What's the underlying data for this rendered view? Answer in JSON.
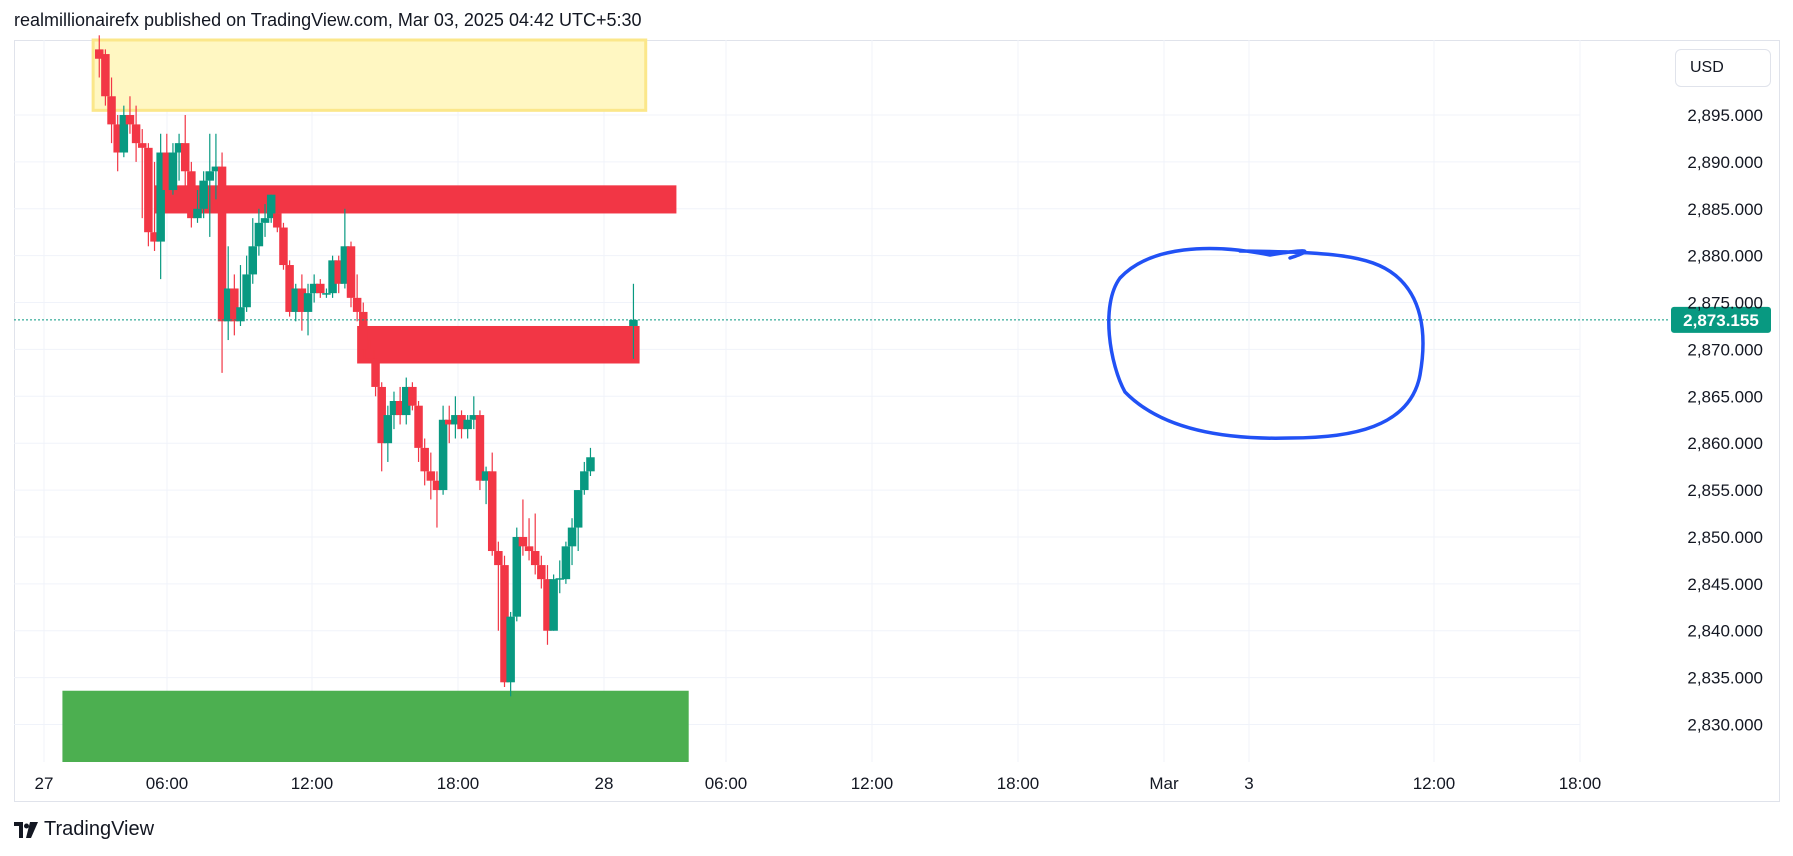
{
  "header": {
    "publisher_line": "realmillionairefx published on TradingView.com, Mar 03, 2025 04:42 UTC+5:30"
  },
  "currency": "USD",
  "footer": {
    "brand": "TradingView"
  },
  "colors": {
    "up": "#089981",
    "down": "#f23645",
    "supply_zone": "#f23645",
    "demand_zone": "#4caf50",
    "highlight_zone": "#fff7c2",
    "highlight_border": "#fbe78a",
    "annotation": "#2151f5",
    "grid": "#f0f3fa",
    "price_line": "#089981"
  },
  "chart_data": {
    "type": "candlestick",
    "symbol_currency": "USD",
    "timeframe": "1 hour",
    "ylim": [
      2826,
      2903
    ],
    "y_ticks": [
      "2,830.000",
      "2,835.000",
      "2,840.000",
      "2,845.000",
      "2,850.000",
      "2,855.000",
      "2,860.000",
      "2,865.000",
      "2,870.000",
      "2,875.000",
      "2,880.000",
      "2,885.000",
      "2,890.000",
      "2,895.000"
    ],
    "x_ticks": [
      "27",
      "06:00",
      "12:00",
      "18:00",
      "28",
      "06:00",
      "12:00",
      "18:00",
      "Mar",
      "3",
      "12:00",
      "18:00"
    ],
    "last_price": "2,873.155",
    "candles": [
      {
        "time": "Feb 27 09:00",
        "o": 2902.0,
        "h": 2903.5,
        "l": 2899.0,
        "c": 2901.0
      },
      {
        "time": "Feb 27 10:00",
        "o": 2901.5,
        "h": 2902.0,
        "l": 2896.0,
        "c": 2897.0
      },
      {
        "time": "Feb 27 11:00",
        "o": 2897.0,
        "h": 2899.0,
        "l": 2892.0,
        "c": 2894.0
      },
      {
        "time": "Feb 27 12:00",
        "o": 2894.0,
        "h": 2895.0,
        "l": 2889.0,
        "c": 2891.0
      },
      {
        "time": "Feb 27 13:00",
        "o": 2891.0,
        "h": 2896.0,
        "l": 2890.5,
        "c": 2895.0
      },
      {
        "time": "Feb 27 14:00",
        "o": 2895.0,
        "h": 2897.0,
        "l": 2893.0,
        "c": 2894.0
      },
      {
        "time": "Feb 27 15:00",
        "o": 2894.0,
        "h": 2896.0,
        "l": 2890.0,
        "c": 2892.0
      },
      {
        "time": "Feb 27 16:00",
        "o": 2892.0,
        "h": 2893.5,
        "l": 2884.0,
        "c": 2891.5
      },
      {
        "time": "Feb 27 17:00",
        "o": 2891.5,
        "h": 2892.0,
        "l": 2881.0,
        "c": 2882.5
      },
      {
        "time": "Feb 27 18:00",
        "o": 2882.5,
        "h": 2890.0,
        "l": 2880.5,
        "c": 2881.5
      },
      {
        "time": "Feb 27 19:00",
        "o": 2881.5,
        "h": 2893.0,
        "l": 2877.5,
        "c": 2891.0
      },
      {
        "time": "Feb 27 20:00",
        "o": 2891.0,
        "h": 2893.0,
        "l": 2885.0,
        "c": 2887.0
      },
      {
        "time": "Feb 27 21:00",
        "o": 2887.0,
        "h": 2892.0,
        "l": 2886.5,
        "c": 2891.0
      },
      {
        "time": "Feb 27 22:00",
        "o": 2891.0,
        "h": 2893.0,
        "l": 2888.0,
        "c": 2892.0
      },
      {
        "time": "Feb 27 23:00",
        "o": 2892.0,
        "h": 2895.0,
        "l": 2887.0,
        "c": 2889.0
      },
      {
        "time": "Feb 28 00:00",
        "o": 2889.0,
        "h": 2890.0,
        "l": 2883.0,
        "c": 2884.0
      },
      {
        "time": "Feb 28 01:00",
        "o": 2884.0,
        "h": 2887.0,
        "l": 2883.5,
        "c": 2885.0
      },
      {
        "time": "Feb 28 02:00",
        "o": 2885.0,
        "h": 2889.0,
        "l": 2884.0,
        "c": 2888.0
      },
      {
        "time": "Feb 28 03:00",
        "o": 2888.0,
        "h": 2893.0,
        "l": 2882.0,
        "c": 2889.0
      },
      {
        "time": "Feb 28 04:00",
        "o": 2889.0,
        "h": 2893.0,
        "l": 2886.0,
        "c": 2889.5
      },
      {
        "time": "Feb 28 05:00",
        "o": 2889.5,
        "h": 2891.0,
        "l": 2867.5,
        "c": 2873.0
      },
      {
        "time": "Feb 28 06:00",
        "o": 2873.0,
        "h": 2881.0,
        "l": 2871.0,
        "c": 2876.5
      },
      {
        "time": "Feb 28 07:00",
        "o": 2876.5,
        "h": 2878.0,
        "l": 2871.5,
        "c": 2873.0
      },
      {
        "time": "Feb 28 08:00",
        "o": 2873.0,
        "h": 2879.0,
        "l": 2872.5,
        "c": 2874.5
      },
      {
        "time": "Feb 28 09:00",
        "o": 2874.5,
        "h": 2880.0,
        "l": 2874.0,
        "c": 2878.0
      },
      {
        "time": "Feb 28 10:00",
        "o": 2878.0,
        "h": 2884.0,
        "l": 2877.0,
        "c": 2881.0
      },
      {
        "time": "Feb 28 11:00",
        "o": 2881.0,
        "h": 2885.0,
        "l": 2880.0,
        "c": 2883.5
      },
      {
        "time": "Feb 28 12:00",
        "o": 2883.5,
        "h": 2885.5,
        "l": 2882.0,
        "c": 2884.0
      },
      {
        "time": "Feb 28 13:00",
        "o": 2884.0,
        "h": 2886.5,
        "l": 2883.5,
        "c": 2886.5
      },
      {
        "time": "Feb 28 14:00",
        "o": 2884.5,
        "h": 2885.5,
        "l": 2882.5,
        "c": 2883.0
      },
      {
        "time": "Feb 28 15:00",
        "o": 2883.0,
        "h": 2883.5,
        "l": 2878.5,
        "c": 2879.0
      },
      {
        "time": "Feb 28 16:00",
        "o": 2879.0,
        "h": 2879.5,
        "l": 2873.5,
        "c": 2874.0
      },
      {
        "time": "Feb 28 17:00",
        "o": 2874.0,
        "h": 2877.0,
        "l": 2873.0,
        "c": 2876.5
      },
      {
        "time": "Feb 28 18:00",
        "o": 2876.5,
        "h": 2878.0,
        "l": 2872.0,
        "c": 2874.0
      },
      {
        "time": "Feb 28 19:00",
        "o": 2874.0,
        "h": 2877.0,
        "l": 2871.5,
        "c": 2876.0
      },
      {
        "time": "Feb 28 20:00",
        "o": 2876.0,
        "h": 2878.0,
        "l": 2875.0,
        "c": 2877.0
      },
      {
        "time": "Feb 28 21:00",
        "o": 2877.0,
        "h": 2877.5,
        "l": 2875.5,
        "c": 2876.0
      },
      {
        "time": "Feb 28 22:00",
        "o": 2876.0,
        "h": 2876.5,
        "l": 2875.5,
        "c": 2876.0
      },
      {
        "time": "Feb 28 23:00",
        "o": 2876.0,
        "h": 2880.0,
        "l": 2875.5,
        "c": 2879.5
      },
      {
        "time": "Mar 01 00:00",
        "o": 2879.5,
        "h": 2880.0,
        "l": 2876.0,
        "c": 2877.0
      },
      {
        "time": "Mar 01 01:00",
        "o": 2877.0,
        "h": 2885.0,
        "l": 2876.5,
        "c": 2881.0
      },
      {
        "time": "Mar 01 02:00",
        "o": 2881.0,
        "h": 2881.5,
        "l": 2874.5,
        "c": 2875.5
      },
      {
        "time": "Mar 01 03:00",
        "o": 2875.5,
        "h": 2878.0,
        "l": 2873.0,
        "c": 2874.0
      },
      {
        "time": "Mar 01 04:00",
        "o": 2874.0,
        "h": 2875.0,
        "l": 2869.0,
        "c": 2870.0
      },
      {
        "time": "Mar 01 05:00",
        "o": 2870.0,
        "h": 2871.0,
        "l": 2868.5,
        "c": 2869.0
      },
      {
        "time": "Mar 01 06:00",
        "o": 2869.0,
        "h": 2870.0,
        "l": 2865.0,
        "c": 2866.0
      },
      {
        "time": "Mar 01 07:00",
        "o": 2866.0,
        "h": 2866.5,
        "l": 2857.0,
        "c": 2860.0
      },
      {
        "time": "Mar 01 08:00",
        "o": 2860.0,
        "h": 2864.0,
        "l": 2858.0,
        "c": 2863.0
      },
      {
        "time": "Mar 01 09:00",
        "o": 2863.0,
        "h": 2865.5,
        "l": 2861.5,
        "c": 2864.5
      },
      {
        "time": "Mar 01 10:00",
        "o": 2864.5,
        "h": 2866.0,
        "l": 2862.0,
        "c": 2863.0
      },
      {
        "time": "Mar 01 11:00",
        "o": 2863.0,
        "h": 2867.0,
        "l": 2862.0,
        "c": 2866.0
      },
      {
        "time": "Mar 01 12:00",
        "o": 2866.0,
        "h": 2866.5,
        "l": 2863.5,
        "c": 2864.0
      },
      {
        "time": "Mar 01 13:00",
        "o": 2864.0,
        "h": 2864.5,
        "l": 2858.0,
        "c": 2859.5
      },
      {
        "time": "Mar 01 14:00",
        "o": 2859.5,
        "h": 2860.5,
        "l": 2855.5,
        "c": 2857.0
      },
      {
        "time": "Mar 01 15:00",
        "o": 2857.0,
        "h": 2859.0,
        "l": 2854.0,
        "c": 2856.0
      },
      {
        "time": "Mar 01 16:00",
        "o": 2856.0,
        "h": 2857.0,
        "l": 2851.0,
        "c": 2855.0
      },
      {
        "time": "Mar 01 17:00",
        "o": 2855.0,
        "h": 2864.0,
        "l": 2854.5,
        "c": 2862.5
      },
      {
        "time": "Mar 01 18:00",
        "o": 2862.5,
        "h": 2864.0,
        "l": 2860.0,
        "c": 2862.0
      },
      {
        "time": "Mar 01 19:00",
        "o": 2862.0,
        "h": 2865.0,
        "l": 2860.5,
        "c": 2863.0
      },
      {
        "time": "Mar 01 20:00",
        "o": 2863.0,
        "h": 2863.5,
        "l": 2860.5,
        "c": 2861.5
      },
      {
        "time": "Mar 01 21:00",
        "o": 2861.5,
        "h": 2863.0,
        "l": 2860.5,
        "c": 2862.5
      },
      {
        "time": "Mar 01 22:00",
        "o": 2862.5,
        "h": 2865.0,
        "l": 2861.5,
        "c": 2863.0
      },
      {
        "time": "Mar 01 23:00",
        "o": 2863.0,
        "h": 2863.5,
        "l": 2855.0,
        "c": 2856.0
      },
      {
        "time": "Mar 02 00:00",
        "o": 2856.0,
        "h": 2857.5,
        "l": 2853.5,
        "c": 2857.0
      },
      {
        "time": "Mar 02 01:00",
        "o": 2857.0,
        "h": 2859.0,
        "l": 2848.0,
        "c": 2848.5
      },
      {
        "time": "Mar 02 02:00",
        "o": 2848.5,
        "h": 2849.5,
        "l": 2840.0,
        "c": 2847.0
      },
      {
        "time": "Mar 02 03:00",
        "o": 2847.0,
        "h": 2848.0,
        "l": 2834.0,
        "c": 2834.5
      },
      {
        "time": "Mar 02 04:00",
        "o": 2834.5,
        "h": 2842.0,
        "l": 2833.0,
        "c": 2841.5
      },
      {
        "time": "Mar 02 05:00",
        "o": 2841.5,
        "h": 2851.0,
        "l": 2841.0,
        "c": 2850.0
      },
      {
        "time": "Mar 02 06:00",
        "o": 2850.0,
        "h": 2854.0,
        "l": 2848.0,
        "c": 2849.0
      },
      {
        "time": "Mar 02 07:00",
        "o": 2849.0,
        "h": 2852.0,
        "l": 2847.5,
        "c": 2848.5
      },
      {
        "time": "Mar 02 08:00",
        "o": 2848.5,
        "h": 2852.5,
        "l": 2846.0,
        "c": 2847.0
      },
      {
        "time": "Mar 02 09:00",
        "o": 2847.0,
        "h": 2848.0,
        "l": 2844.5,
        "c": 2845.5
      },
      {
        "time": "Mar 02 10:00",
        "o": 2845.5,
        "h": 2847.0,
        "l": 2838.5,
        "c": 2840.0
      },
      {
        "time": "Mar 02 11:00",
        "o": 2840.0,
        "h": 2846.0,
        "l": 2840.0,
        "c": 2845.5
      },
      {
        "time": "Mar 02 12:00",
        "o": 2845.5,
        "h": 2847.5,
        "l": 2844.0,
        "c": 2845.6
      },
      {
        "time": "Mar 02 13:00",
        "o": 2845.5,
        "h": 2849.5,
        "l": 2845.0,
        "c": 2849.0
      },
      {
        "time": "Mar 02 14:00",
        "o": 2849.0,
        "h": 2852.0,
        "l": 2847.0,
        "c": 2851.0
      },
      {
        "time": "Mar 02 15:00",
        "o": 2851.0,
        "h": 2855.0,
        "l": 2848.5,
        "c": 2855.0
      },
      {
        "time": "Mar 02 16:00",
        "o": 2855.0,
        "h": 2858.0,
        "l": 2854.5,
        "c": 2857.0
      },
      {
        "time": "Mar 02 17:00",
        "o": 2857.0,
        "h": 2859.5,
        "l": 2856.5,
        "c": 2858.5
      },
      {
        "time": "Mar 03 00:00",
        "o": 2872.5,
        "h": 2877.0,
        "l": 2869.0,
        "c": 2873.155
      }
    ],
    "zones": [
      {
        "name": "highlight",
        "from": "Feb 27 08:00",
        "to": "Mar 03 02:00",
        "top": 2903,
        "bottom": 2895.5
      },
      {
        "name": "supply-upper",
        "from": "Feb 27 18:00",
        "to": "Mar 03 07:00",
        "top": 2887.5,
        "bottom": 2884.5
      },
      {
        "name": "supply-lower",
        "from": "Mar 01 03:00",
        "to": "Mar 03 01:00",
        "top": 2872.5,
        "bottom": 2868.5
      },
      {
        "name": "demand",
        "from": "Feb 27 03:00",
        "to": "Mar 03 09:00",
        "top": 2833.6,
        "bottom": 2826.0
      }
    ]
  }
}
